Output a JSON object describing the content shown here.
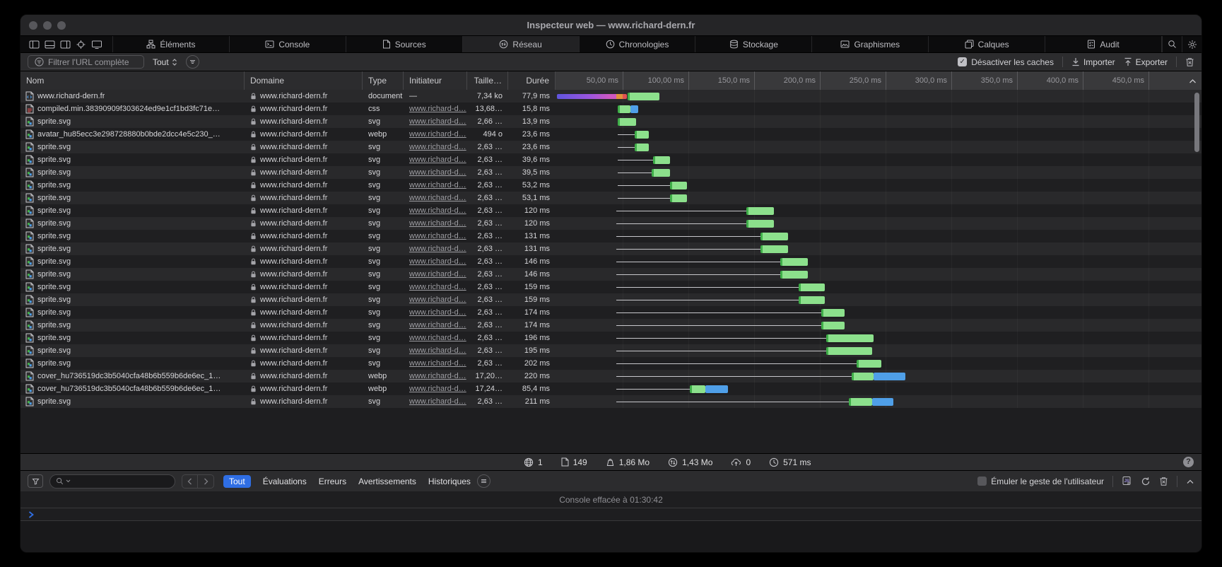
{
  "window": {
    "title": "Inspecteur web — www.richard-dern.fr"
  },
  "tabs": [
    {
      "label": "Éléments",
      "icon": "elements"
    },
    {
      "label": "Console",
      "icon": "console"
    },
    {
      "label": "Sources",
      "icon": "sources"
    },
    {
      "label": "Réseau",
      "icon": "network",
      "active": true
    },
    {
      "label": "Chronologies",
      "icon": "timelines"
    },
    {
      "label": "Stockage",
      "icon": "storage"
    },
    {
      "label": "Graphismes",
      "icon": "graphics"
    },
    {
      "label": "Calques",
      "icon": "layers"
    },
    {
      "label": "Audit",
      "icon": "audit"
    }
  ],
  "filterbar": {
    "filter_label": "Filtrer l'URL complète",
    "scope_label": "Tout",
    "disable_caches_label": "Désactiver les caches",
    "import_label": "Importer",
    "export_label": "Exporter"
  },
  "table": {
    "columns": [
      "Nom",
      "Domaine",
      "Type",
      "Initiateur",
      "Taille…",
      "Durée"
    ],
    "timeline_ticks": [
      "50,00 ms",
      "100,00 ms",
      "150,0 ms",
      "200,0 ms",
      "250,0 ms",
      "300,0 ms",
      "350,0 ms",
      "400,0 ms",
      "450,0 ms"
    ],
    "requests": [
      {
        "name": "www.richard-dern.fr",
        "icon": "doc-html",
        "domain": "www.richard-dern.fr",
        "type": "document",
        "initiator": "—",
        "size": "7,34 ko",
        "duration": "77,9 ms",
        "bar": {
          "segments": [
            {
              "c": "grad",
              "s": 0,
              "e": 45
            },
            {
              "c": "orange",
              "s": 45,
              "e": 50
            },
            {
              "c": "red",
              "s": 50,
              "e": 53
            },
            {
              "c": "green",
              "s": 54,
              "e": 78
            }
          ]
        }
      },
      {
        "name": "compiled.min.38390909f303624ed9e1cf1bd3fc71e…",
        "icon": "doc-css",
        "domain": "www.richard-dern.fr",
        "type": "css",
        "initiator": "www.richard-d…",
        "size": "13,68…",
        "duration": "15,8 ms",
        "bar": {
          "segments": [
            {
              "c": "green",
              "s": 46,
              "e": 56
            },
            {
              "c": "blue",
              "s": 56,
              "e": 62
            }
          ]
        }
      },
      {
        "name": "sprite.svg",
        "icon": "doc-img",
        "domain": "www.richard-dern.fr",
        "type": "svg",
        "initiator": "www.richard-d…",
        "size": "2,66 …",
        "duration": "13,9 ms",
        "bar": {
          "segments": [
            {
              "c": "green",
              "s": 46,
              "e": 60
            }
          ]
        }
      },
      {
        "name": "avatar_hu85ecc3e298728880b0bde2dcc4e5c230_…",
        "icon": "doc-img",
        "domain": "www.richard-dern.fr",
        "type": "webp",
        "initiator": "www.richard-d…",
        "size": "494 o",
        "duration": "23,6 ms",
        "bar": {
          "line": [
            46,
            59
          ],
          "segments": [
            {
              "c": "green",
              "s": 59,
              "e": 70
            }
          ]
        }
      },
      {
        "name": "sprite.svg",
        "icon": "doc-img",
        "domain": "www.richard-dern.fr",
        "type": "svg",
        "initiator": "www.richard-d…",
        "size": "2,63 …",
        "duration": "23,6 ms",
        "bar": {
          "line": [
            46,
            59
          ],
          "segments": [
            {
              "c": "green",
              "s": 59,
              "e": 70
            }
          ]
        }
      },
      {
        "name": "sprite.svg",
        "icon": "doc-img",
        "domain": "www.richard-dern.fr",
        "type": "svg",
        "initiator": "www.richard-d…",
        "size": "2,63 …",
        "duration": "39,6 ms",
        "bar": {
          "line": [
            46,
            73
          ],
          "segments": [
            {
              "c": "green",
              "s": 73,
              "e": 86
            }
          ]
        }
      },
      {
        "name": "sprite.svg",
        "icon": "doc-img",
        "domain": "www.richard-dern.fr",
        "type": "svg",
        "initiator": "www.richard-d…",
        "size": "2,63 …",
        "duration": "39,5 ms",
        "bar": {
          "line": [
            46,
            72
          ],
          "segments": [
            {
              "c": "green",
              "s": 72,
              "e": 86
            }
          ]
        }
      },
      {
        "name": "sprite.svg",
        "icon": "doc-img",
        "domain": "www.richard-dern.fr",
        "type": "svg",
        "initiator": "www.richard-d…",
        "size": "2,63 …",
        "duration": "53,2 ms",
        "bar": {
          "line": [
            46,
            86
          ],
          "segments": [
            {
              "c": "green",
              "s": 86,
              "e": 99
            }
          ]
        }
      },
      {
        "name": "sprite.svg",
        "icon": "doc-img",
        "domain": "www.richard-dern.fr",
        "type": "svg",
        "initiator": "www.richard-d…",
        "size": "2,63 …",
        "duration": "53,1 ms",
        "bar": {
          "line": [
            46,
            86
          ],
          "segments": [
            {
              "c": "green",
              "s": 86,
              "e": 99
            }
          ]
        }
      },
      {
        "name": "sprite.svg",
        "icon": "doc-img",
        "domain": "www.richard-dern.fr",
        "type": "svg",
        "initiator": "www.richard-d…",
        "size": "2,63 …",
        "duration": "120 ms",
        "bar": {
          "line": [
            45,
            144
          ],
          "segments": [
            {
              "c": "green",
              "s": 144,
              "e": 165
            }
          ]
        }
      },
      {
        "name": "sprite.svg",
        "icon": "doc-img",
        "domain": "www.richard-dern.fr",
        "type": "svg",
        "initiator": "www.richard-d…",
        "size": "2,63 …",
        "duration": "120 ms",
        "bar": {
          "line": [
            45,
            144
          ],
          "segments": [
            {
              "c": "green",
              "s": 144,
              "e": 165
            }
          ]
        }
      },
      {
        "name": "sprite.svg",
        "icon": "doc-img",
        "domain": "www.richard-dern.fr",
        "type": "svg",
        "initiator": "www.richard-d…",
        "size": "2,63 …",
        "duration": "131 ms",
        "bar": {
          "line": [
            45,
            155
          ],
          "segments": [
            {
              "c": "green",
              "s": 155,
              "e": 176
            }
          ]
        }
      },
      {
        "name": "sprite.svg",
        "icon": "doc-img",
        "domain": "www.richard-dern.fr",
        "type": "svg",
        "initiator": "www.richard-d…",
        "size": "2,63 …",
        "duration": "131 ms",
        "bar": {
          "line": [
            45,
            155
          ],
          "segments": [
            {
              "c": "green",
              "s": 155,
              "e": 176
            }
          ]
        }
      },
      {
        "name": "sprite.svg",
        "icon": "doc-img",
        "domain": "www.richard-dern.fr",
        "type": "svg",
        "initiator": "www.richard-d…",
        "size": "2,63 …",
        "duration": "146 ms",
        "bar": {
          "line": [
            45,
            170
          ],
          "segments": [
            {
              "c": "green",
              "s": 170,
              "e": 191
            }
          ]
        }
      },
      {
        "name": "sprite.svg",
        "icon": "doc-img",
        "domain": "www.richard-dern.fr",
        "type": "svg",
        "initiator": "www.richard-d…",
        "size": "2,63 …",
        "duration": "146 ms",
        "bar": {
          "line": [
            45,
            170
          ],
          "segments": [
            {
              "c": "green",
              "s": 170,
              "e": 191
            }
          ]
        }
      },
      {
        "name": "sprite.svg",
        "icon": "doc-img",
        "domain": "www.richard-dern.fr",
        "type": "svg",
        "initiator": "www.richard-d…",
        "size": "2,63 …",
        "duration": "159 ms",
        "bar": {
          "line": [
            45,
            184
          ],
          "segments": [
            {
              "c": "green",
              "s": 184,
              "e": 204
            }
          ]
        }
      },
      {
        "name": "sprite.svg",
        "icon": "doc-img",
        "domain": "www.richard-dern.fr",
        "type": "svg",
        "initiator": "www.richard-d…",
        "size": "2,63 …",
        "duration": "159 ms",
        "bar": {
          "line": [
            45,
            184
          ],
          "segments": [
            {
              "c": "green",
              "s": 184,
              "e": 204
            }
          ]
        }
      },
      {
        "name": "sprite.svg",
        "icon": "doc-img",
        "domain": "www.richard-dern.fr",
        "type": "svg",
        "initiator": "www.richard-d…",
        "size": "2,63 …",
        "duration": "174 ms",
        "bar": {
          "line": [
            45,
            201
          ],
          "segments": [
            {
              "c": "green",
              "s": 201,
              "e": 219
            }
          ]
        }
      },
      {
        "name": "sprite.svg",
        "icon": "doc-img",
        "domain": "www.richard-dern.fr",
        "type": "svg",
        "initiator": "www.richard-d…",
        "size": "2,63 …",
        "duration": "174 ms",
        "bar": {
          "line": [
            45,
            201
          ],
          "segments": [
            {
              "c": "green",
              "s": 201,
              "e": 219
            }
          ]
        }
      },
      {
        "name": "sprite.svg",
        "icon": "doc-img",
        "domain": "www.richard-dern.fr",
        "type": "svg",
        "initiator": "www.richard-d…",
        "size": "2,63 …",
        "duration": "196 ms",
        "bar": {
          "line": [
            45,
            205
          ],
          "segments": [
            {
              "c": "green",
              "s": 205,
              "e": 241
            }
          ]
        }
      },
      {
        "name": "sprite.svg",
        "icon": "doc-img",
        "domain": "www.richard-dern.fr",
        "type": "svg",
        "initiator": "www.richard-d…",
        "size": "2,63 …",
        "duration": "195 ms",
        "bar": {
          "line": [
            45,
            205
          ],
          "segments": [
            {
              "c": "green",
              "s": 205,
              "e": 240
            }
          ]
        }
      },
      {
        "name": "sprite.svg",
        "icon": "doc-img",
        "domain": "www.richard-dern.fr",
        "type": "svg",
        "initiator": "www.richard-d…",
        "size": "2,63 …",
        "duration": "202 ms",
        "bar": {
          "line": [
            45,
            228
          ],
          "segments": [
            {
              "c": "green",
              "s": 228,
              "e": 247
            }
          ]
        }
      },
      {
        "name": "cover_hu736519dc3b5040cfa48b6b559b6de6ec_1…",
        "icon": "doc-img",
        "domain": "www.richard-dern.fr",
        "type": "webp",
        "initiator": "www.richard-d…",
        "size": "17,20…",
        "duration": "220 ms",
        "bar": {
          "line": [
            45,
            224
          ],
          "segments": [
            {
              "c": "green",
              "s": 224,
              "e": 241
            },
            {
              "c": "blue",
              "s": 241,
              "e": 265
            }
          ]
        }
      },
      {
        "name": "cover_hu736519dc3b5040cfa48b6b559b6de6ec_1…",
        "icon": "doc-img",
        "domain": "www.richard-dern.fr",
        "type": "webp",
        "initiator": "www.richard-d…",
        "size": "17,24…",
        "duration": "85,4 ms",
        "bar": {
          "line": [
            45,
            101
          ],
          "segments": [
            {
              "c": "green",
              "s": 101,
              "e": 113
            },
            {
              "c": "blue",
              "s": 113,
              "e": 130
            }
          ]
        }
      },
      {
        "name": "sprite.svg",
        "icon": "doc-img",
        "domain": "www.richard-dern.fr",
        "type": "svg",
        "initiator": "www.richard-d…",
        "size": "2,63 …",
        "duration": "211 ms",
        "bar": {
          "line": [
            45,
            222
          ],
          "segments": [
            {
              "c": "green",
              "s": 222,
              "e": 240
            },
            {
              "c": "blue",
              "s": 240,
              "e": 256
            }
          ]
        }
      }
    ]
  },
  "stats": [
    {
      "icon": "globe",
      "value": "1"
    },
    {
      "icon": "document",
      "value": "149"
    },
    {
      "icon": "weight",
      "value": "1,86 Mo"
    },
    {
      "icon": "transfer",
      "value": "1,43 Mo"
    },
    {
      "icon": "cloud-upload",
      "value": "0"
    },
    {
      "icon": "clock",
      "value": "571 ms"
    }
  ],
  "console": {
    "scopes": [
      "Tout",
      "Évaluations",
      "Erreurs",
      "Avertissements",
      "Historiques"
    ],
    "active_scope": "Tout",
    "emulate_label": "Émuler le geste de l'utilisateur",
    "cleared_message": "Console effacée à 01:30:42",
    "search_placeholder": ""
  },
  "palette": {
    "accent_blue": "#2f6ee4",
    "bar_green": "#8ce08c",
    "bar_green_dark": "#3fae49",
    "bar_blue": "#4f9fe8",
    "bar_purple": "#7d55dd",
    "bar_orange": "#e0913c",
    "bar_red": "#e05252",
    "toolbar_bg": "#2c2c2e",
    "row_dark": "#1f1f21",
    "row_light": "#29292b"
  }
}
